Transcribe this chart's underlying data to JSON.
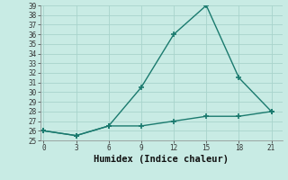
{
  "xlabel": "Humidex (Indice chaleur)",
  "x": [
    0,
    3,
    6,
    9,
    12,
    15,
    18,
    21
  ],
  "line1_y": [
    26,
    25.5,
    26.5,
    30.5,
    36,
    39,
    31.5,
    28
  ],
  "line2_y": [
    26,
    25.5,
    26.5,
    26.5,
    27.0,
    27.5,
    27.5,
    28
  ],
  "line_color": "#1a7a6e",
  "bg_color": "#c8ebe4",
  "grid_color": "#a8d4cc",
  "ylim": [
    25,
    39
  ],
  "yticks": [
    25,
    26,
    27,
    28,
    29,
    30,
    31,
    32,
    33,
    34,
    35,
    36,
    37,
    38,
    39
  ],
  "xticks": [
    0,
    3,
    6,
    9,
    12,
    15,
    18,
    21
  ],
  "marker": "+",
  "marker_size": 5,
  "line_width": 1.0,
  "tick_fontsize": 5.5,
  "label_fontsize": 7.5
}
